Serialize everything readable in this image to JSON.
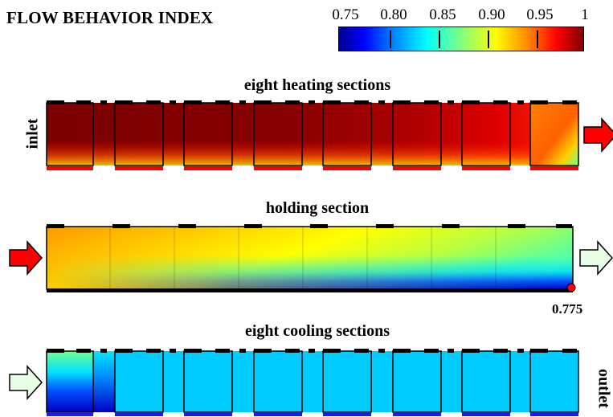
{
  "title": "FLOW BEHAVIOR INDEX",
  "colorbar": {
    "ticks": [
      "0.75",
      "0.80",
      "0.85",
      "0.90",
      "0.95",
      "1"
    ],
    "min": 0.75,
    "max": 1,
    "colormap": "jet"
  },
  "panels": {
    "heating": {
      "title": "eight heating sections",
      "left_label": "inlet",
      "sections": 8
    },
    "holding": {
      "title": "holding section",
      "min_value_label": "0.775"
    },
    "cooling": {
      "title": "eight cooling sections",
      "right_label": "outlet",
      "sections": 8
    }
  },
  "colors": {
    "arrow_hot": "#ff0000",
    "arrow_cool": "#e6ffe6",
    "heater_strip": "#ff0000",
    "cooler_strip": "#1a1aff"
  }
}
